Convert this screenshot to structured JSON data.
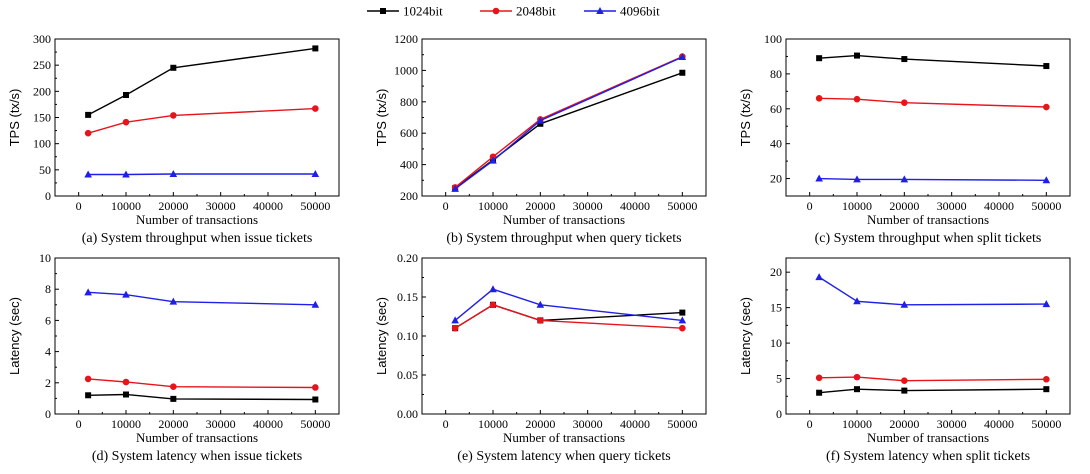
{
  "legend": {
    "items": [
      {
        "label": "1024bit",
        "color": "#000000",
        "marker": "square"
      },
      {
        "label": "2048bit",
        "color": "#e8141c",
        "marker": "circle"
      },
      {
        "label": "4096bit",
        "color": "#1f1fe8",
        "marker": "triangle"
      }
    ]
  },
  "chart_data": [
    {
      "type": "line",
      "caption": "(a) System throughput when issue tickets",
      "xlabel": "Number of transactions",
      "ylabel": "TPS (tx/s)",
      "x": [
        2000,
        10000,
        20000,
        50000
      ],
      "xlim": [
        -5000,
        55000
      ],
      "xticks": [
        0,
        10000,
        20000,
        30000,
        40000,
        50000
      ],
      "ylim": [
        0,
        300
      ],
      "yticks": [
        0,
        50,
        100,
        150,
        200,
        250,
        300
      ],
      "ytick_labels": [
        "0",
        "50",
        "100",
        "150",
        "200",
        "250",
        "300"
      ],
      "series": [
        {
          "name": "1024bit",
          "values": [
            155,
            193,
            245,
            282
          ]
        },
        {
          "name": "2048bit",
          "values": [
            120,
            141,
            154,
            167
          ]
        },
        {
          "name": "4096bit",
          "values": [
            41,
            41,
            42,
            42
          ]
        }
      ]
    },
    {
      "type": "line",
      "caption": "(b) System throughput when query tickets",
      "xlabel": "Number of transactions",
      "ylabel": "TPS (tx/s)",
      "x": [
        2000,
        10000,
        20000,
        50000
      ],
      "xlim": [
        -5000,
        55000
      ],
      "xticks": [
        0,
        10000,
        20000,
        30000,
        40000,
        50000
      ],
      "ylim": [
        200,
        1200
      ],
      "yticks": [
        200,
        400,
        600,
        800,
        1000,
        1200
      ],
      "ytick_labels": [
        "200",
        "400",
        "600",
        "800",
        "1000",
        "1200"
      ],
      "series": [
        {
          "name": "1024bit",
          "values": [
            250,
            430,
            660,
            985
          ]
        },
        {
          "name": "2048bit",
          "values": [
            255,
            450,
            688,
            1088
          ]
        },
        {
          "name": "4096bit",
          "values": [
            245,
            425,
            680,
            1085
          ]
        }
      ]
    },
    {
      "type": "line",
      "caption": "(c) System throughput when split tickets",
      "xlabel": "Number of transactions",
      "ylabel": "TPS (tx/s)",
      "x": [
        2000,
        10000,
        20000,
        50000
      ],
      "xlim": [
        -5000,
        55000
      ],
      "xticks": [
        0,
        10000,
        20000,
        30000,
        40000,
        50000
      ],
      "ylim": [
        10,
        100
      ],
      "yticks": [
        20,
        40,
        60,
        80,
        100
      ],
      "ytick_labels": [
        "20",
        "40",
        "60",
        "80",
        "100"
      ],
      "series": [
        {
          "name": "1024bit",
          "values": [
            89,
            90.5,
            88.5,
            84.5
          ]
        },
        {
          "name": "2048bit",
          "values": [
            66,
            65.5,
            63.5,
            61
          ]
        },
        {
          "name": "4096bit",
          "values": [
            20,
            19.5,
            19.5,
            19
          ]
        }
      ]
    },
    {
      "type": "line",
      "caption": "(d) System latency when issue tickets",
      "xlabel": "Number of transactions",
      "ylabel": "Latency (sec)",
      "x": [
        2000,
        10000,
        20000,
        50000
      ],
      "xlim": [
        -5000,
        55000
      ],
      "xticks": [
        0,
        10000,
        20000,
        30000,
        40000,
        50000
      ],
      "ylim": [
        0,
        10
      ],
      "yticks": [
        0,
        2,
        4,
        6,
        8,
        10
      ],
      "ytick_labels": [
        "0",
        "2",
        "4",
        "6",
        "8",
        "10"
      ],
      "series": [
        {
          "name": "1024bit",
          "values": [
            1.2,
            1.25,
            0.97,
            0.93
          ]
        },
        {
          "name": "2048bit",
          "values": [
            2.25,
            2.05,
            1.75,
            1.7
          ]
        },
        {
          "name": "4096bit",
          "values": [
            7.8,
            7.65,
            7.2,
            7.0
          ]
        }
      ]
    },
    {
      "type": "line",
      "caption": "(e) System latency when query tickets",
      "xlabel": "Number of transactions",
      "ylabel": "Latency (sec)",
      "x": [
        2000,
        10000,
        20000,
        50000
      ],
      "xlim": [
        -5000,
        55000
      ],
      "xticks": [
        0,
        10000,
        20000,
        30000,
        40000,
        50000
      ],
      "ylim": [
        0,
        0.2
      ],
      "yticks": [
        0,
        0.05,
        0.1,
        0.15,
        0.2
      ],
      "ytick_labels": [
        "0.00",
        "0.05",
        "0.10",
        "0.15",
        "0.20"
      ],
      "series": [
        {
          "name": "1024bit",
          "values": [
            0.11,
            0.14,
            0.12,
            0.13
          ]
        },
        {
          "name": "2048bit",
          "values": [
            0.11,
            0.14,
            0.12,
            0.11
          ]
        },
        {
          "name": "4096bit",
          "values": [
            0.12,
            0.16,
            0.14,
            0.12
          ]
        }
      ]
    },
    {
      "type": "line",
      "caption": "(f) System latency when split tickets",
      "xlabel": "Number of transactions",
      "ylabel": "Latency (sec)",
      "x": [
        2000,
        10000,
        20000,
        50000
      ],
      "xlim": [
        -5000,
        55000
      ],
      "xticks": [
        0,
        10000,
        20000,
        30000,
        40000,
        50000
      ],
      "ylim": [
        0,
        22
      ],
      "yticks": [
        0,
        5,
        10,
        15,
        20
      ],
      "ytick_labels": [
        "0",
        "5",
        "10",
        "15",
        "20"
      ],
      "series": [
        {
          "name": "1024bit",
          "values": [
            3.0,
            3.5,
            3.3,
            3.5
          ]
        },
        {
          "name": "2048bit",
          "values": [
            5.1,
            5.2,
            4.7,
            4.9
          ]
        },
        {
          "name": "4096bit",
          "values": [
            19.3,
            15.9,
            15.4,
            15.5
          ]
        }
      ]
    }
  ]
}
